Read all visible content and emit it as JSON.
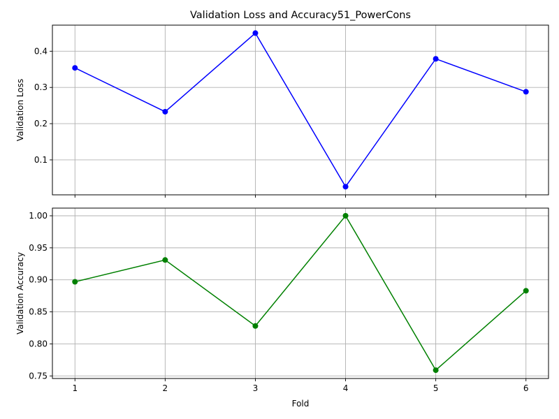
{
  "figure": {
    "title": "Validation Loss and Accuracy51_PowerCons",
    "xlabel": "Fold"
  },
  "chart_data": [
    {
      "type": "line",
      "title": "Validation Loss and Accuracy51_PowerCons",
      "xlabel": "",
      "ylabel": "Validation Loss",
      "x": [
        1,
        2,
        3,
        4,
        5,
        6
      ],
      "xticks": [
        "1",
        "2",
        "3",
        "4",
        "5",
        "6"
      ],
      "xlim": [
        0.75,
        6.25
      ],
      "ylim": [
        0.0035,
        0.472
      ],
      "yticks": [
        0.1,
        0.2,
        0.3,
        0.4
      ],
      "ytick_labels": [
        "0.1",
        "0.2",
        "0.3",
        "0.4"
      ],
      "grid": true,
      "series": [
        {
          "values": [
            0.354,
            0.233,
            0.45,
            0.026,
            0.379,
            0.288
          ],
          "color": "#0000ff",
          "marker": "circle"
        }
      ]
    },
    {
      "type": "line",
      "title": "",
      "xlabel": "Fold",
      "ylabel": "Validation Accuracy",
      "x": [
        1,
        2,
        3,
        4,
        5,
        6
      ],
      "xticks": [
        "1",
        "2",
        "3",
        "4",
        "5",
        "6"
      ],
      "xlim": [
        0.75,
        6.25
      ],
      "ylim": [
        0.746,
        1.012
      ],
      "yticks": [
        0.75,
        0.8,
        0.85,
        0.9,
        0.95,
        1.0
      ],
      "ytick_labels": [
        "0.75",
        "0.80",
        "0.85",
        "0.90",
        "0.95",
        "1.00"
      ],
      "grid": true,
      "series": [
        {
          "values": [
            0.897,
            0.931,
            0.828,
            1.0,
            0.759,
            0.883
          ],
          "color": "#008000",
          "marker": "circle"
        }
      ]
    }
  ]
}
